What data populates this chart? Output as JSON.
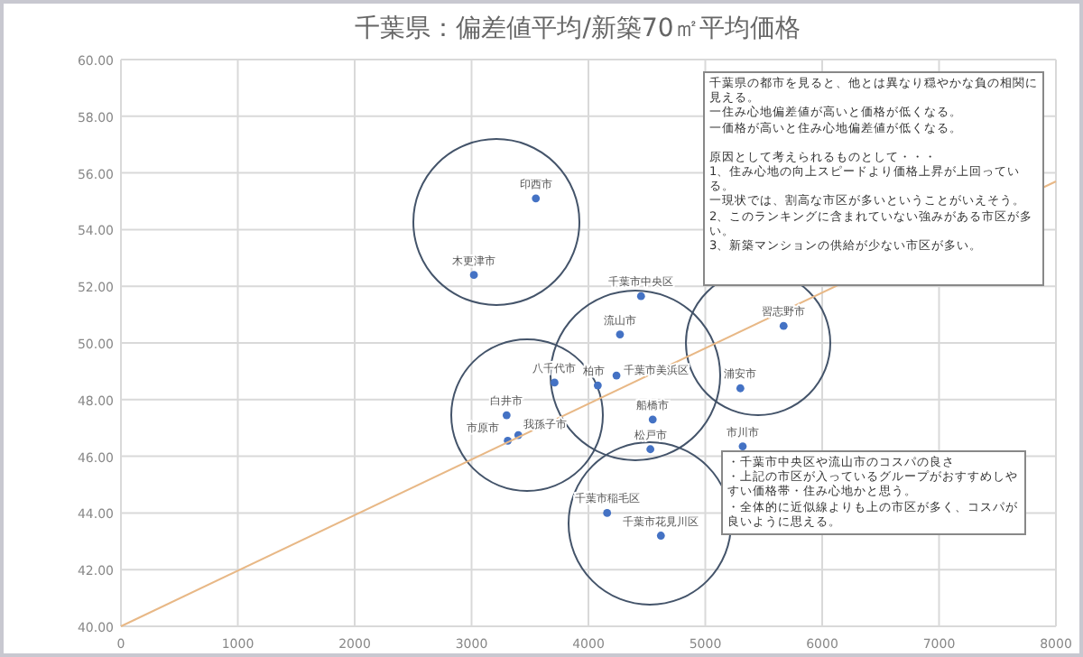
{
  "chart_data": {
    "type": "scatter",
    "title": "千葉県：偏差値平均/新築70㎡平均価格",
    "series": [
      {
        "color": "#4472c4",
        "marker": "circle",
        "x": [
          3550,
          3020,
          4450,
          4270,
          5670,
          4240,
          4080,
          3710,
          5300,
          3300,
          4550,
          3400,
          3310,
          4530,
          5320,
          4160,
          4620
        ],
        "values": [
          55.1,
          52.4,
          51.65,
          50.3,
          50.6,
          48.85,
          48.5,
          48.6,
          48.4,
          47.45,
          47.3,
          46.75,
          46.55,
          46.25,
          46.35,
          44.0,
          43.2
        ]
      },
      {
        "type": "line",
        "color": "#e8b886",
        "marker": "none",
        "x": [
          0,
          8000
        ],
        "values": [
          40,
          55.7
        ]
      }
    ],
    "xlim": [
      0,
      8000
    ],
    "xticks": [
      0,
      1000,
      2000,
      3000,
      4000,
      5000,
      6000,
      7000,
      8000
    ],
    "ylim": [
      40,
      60
    ],
    "yticks": [
      {
        "value": 40,
        "label": "40.00"
      },
      {
        "value": 42,
        "label": "42.00"
      },
      {
        "value": 44,
        "label": "44.00"
      },
      {
        "value": 46,
        "label": "46.00"
      },
      {
        "value": 48,
        "label": "48.00"
      },
      {
        "value": 50,
        "label": "50.00"
      },
      {
        "value": 52,
        "label": "52.00"
      },
      {
        "value": 54,
        "label": "54.00"
      },
      {
        "value": 56,
        "label": "56.00"
      },
      {
        "value": 58,
        "label": "58.00"
      },
      {
        "value": 60,
        "label": "60.00"
      }
    ],
    "grid": true,
    "legend": false,
    "annotations": [
      {
        "text": "印西市",
        "x": 3550,
        "y": 55.1
      },
      {
        "text": "木更津市",
        "x": 3020,
        "y": 52.4
      },
      {
        "text": "千葉市中央区",
        "x": 4450,
        "y": 51.65
      },
      {
        "text": "流山市",
        "x": 4270,
        "y": 50.3
      },
      {
        "text": "習志野市",
        "x": 5670,
        "y": 50.6
      },
      {
        "text": "千葉市美浜区",
        "x": 4240,
        "y": 48.85
      },
      {
        "text": "柏市",
        "x": 4080,
        "y": 48.5
      },
      {
        "text": "八千代市",
        "x": 3710,
        "y": 48.6
      },
      {
        "text": "浦安市",
        "x": 5300,
        "y": 48.4
      },
      {
        "text": "白井市",
        "x": 3300,
        "y": 47.45
      },
      {
        "text": "船橋市",
        "x": 4550,
        "y": 47.3
      },
      {
        "text": "我孫子市",
        "x": 3400,
        "y": 46.75
      },
      {
        "text": "市原市",
        "x": 3310,
        "y": 46.55
      },
      {
        "text": "松戸市",
        "x": 4530,
        "y": 46.25
      },
      {
        "text": "市川市",
        "x": 5320,
        "y": 46.35
      },
      {
        "text": "千葉市稲毛区",
        "x": 4160,
        "y": 44.0
      },
      {
        "text": "千葉市花見川区",
        "x": 4620,
        "y": 43.2
      },
      "千葉県の都市を見ると、他とは異なり穏やかな負の相関に見える。",
      "一住み心地偏差値が高いと価格が低くなる。",
      "一価格が高いと住み心地偏差値が低くなる。",
      "原因として考えられるものとして・・・",
      "1、住み心地の向上スピードより価格上昇が上回っている。",
      "一現状では、割高な市区が多いということがいえそう。",
      "2、このランキングに含まれていない強みがある市区が多い。",
      "3、新築マンションの供給が少ない市区が多い。",
      "・千葉市中央区や流山市のコスパの良さ",
      "・上記の市区が入っているグループがおすすめしやすい価格帯・住み心地かと思う。",
      "・全体的に近似線よりも上の市区が多く、コスパが良いように思える。"
    ]
  }
}
